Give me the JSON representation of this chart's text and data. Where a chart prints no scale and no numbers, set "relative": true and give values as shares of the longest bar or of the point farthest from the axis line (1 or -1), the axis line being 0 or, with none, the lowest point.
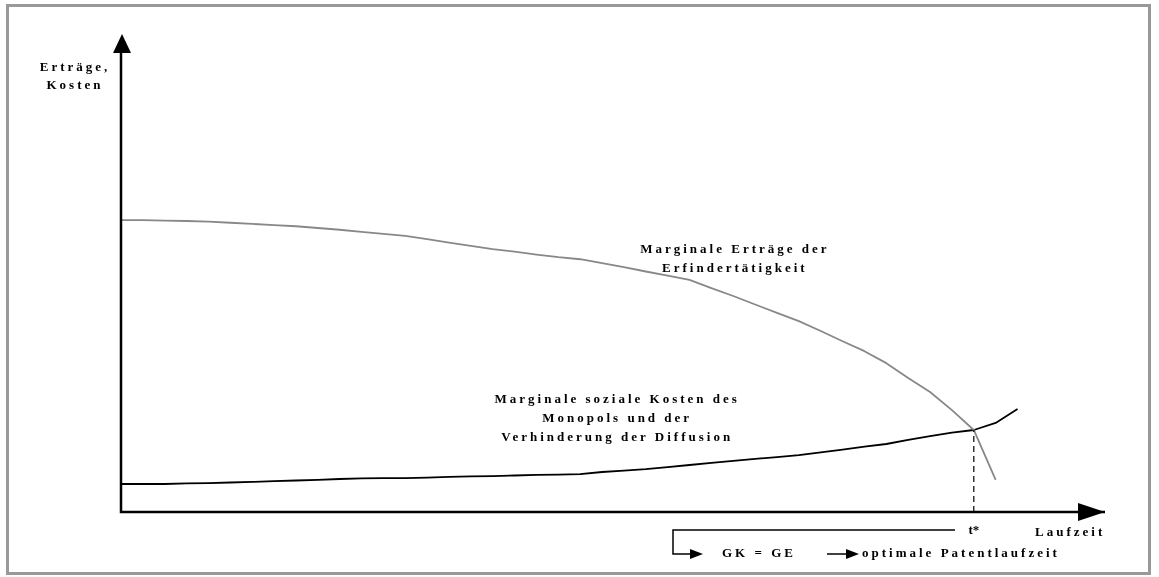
{
  "chart_data": {
    "type": "line",
    "relative": true,
    "xlabel": "Laufzeit",
    "line_style": "solid",
    "categories": [
      null,
      null,
      null,
      null,
      null,
      null,
      null,
      null,
      null,
      null,
      null,
      null,
      null,
      null,
      null,
      null,
      null,
      null,
      null,
      null,
      null,
      null,
      null,
      null,
      null,
      null,
      null,
      null,
      null,
      null,
      null,
      null,
      null,
      null,
      null,
      null,
      null,
      null,
      null,
      null,
      null,
      null,
      null,
      null,
      null,
      null
    ],
    "series": [
      {
        "name": "Marginale Erträge der Erfindertätigkeit",
        "color": "#888888",
        "values": [
          1,
          1,
          0.998,
          0.997,
          0.995,
          0.991,
          0.987,
          0.983,
          0.979,
          0.973,
          0.967,
          0.96,
          0.953,
          0.946,
          0.935,
          0.923,
          0.912,
          0.901,
          0.892,
          0.882,
          0.873,
          0.866,
          0.853,
          0.839,
          0.824,
          0.81,
          0.795,
          0.767,
          0.74,
          0.711,
          0.682,
          0.654,
          0.62,
          0.585,
          0.551,
          0.51,
          0.459,
          0.411,
          0.349,
          0.281,
          0.11,
          null,
          null,
          null,
          null,
          null
        ]
      },
      {
        "name": "Marginale soziale Kosten des Monopols und der Verhinderung der Diffusion",
        "color": "#000000",
        "values": [
          0.096,
          0.096,
          0.096,
          0.098,
          0.099,
          0.101,
          0.103,
          0.106,
          0.108,
          0.11,
          0.113,
          0.115,
          0.116,
          0.116,
          0.118,
          0.12,
          0.122,
          0.123,
          0.125,
          0.127,
          0.128,
          0.13,
          0.137,
          0.142,
          0.147,
          0.154,
          0.161,
          0.168,
          0.175,
          0.182,
          0.188,
          0.195,
          0.204,
          0.214,
          0.224,
          0.233,
          0.247,
          0.26,
          0.272,
          0.281,
          0.305,
          0.353,
          null,
          null,
          null,
          null
        ]
      }
    ],
    "ref_lines": [
      {
        "axis": "x",
        "label": "t*",
        "line_style": "dashed"
      }
    ],
    "annotations": [
      "Erträge, Kosten",
      "GK = GE",
      "optimale Patentlaufzeit"
    ]
  }
}
